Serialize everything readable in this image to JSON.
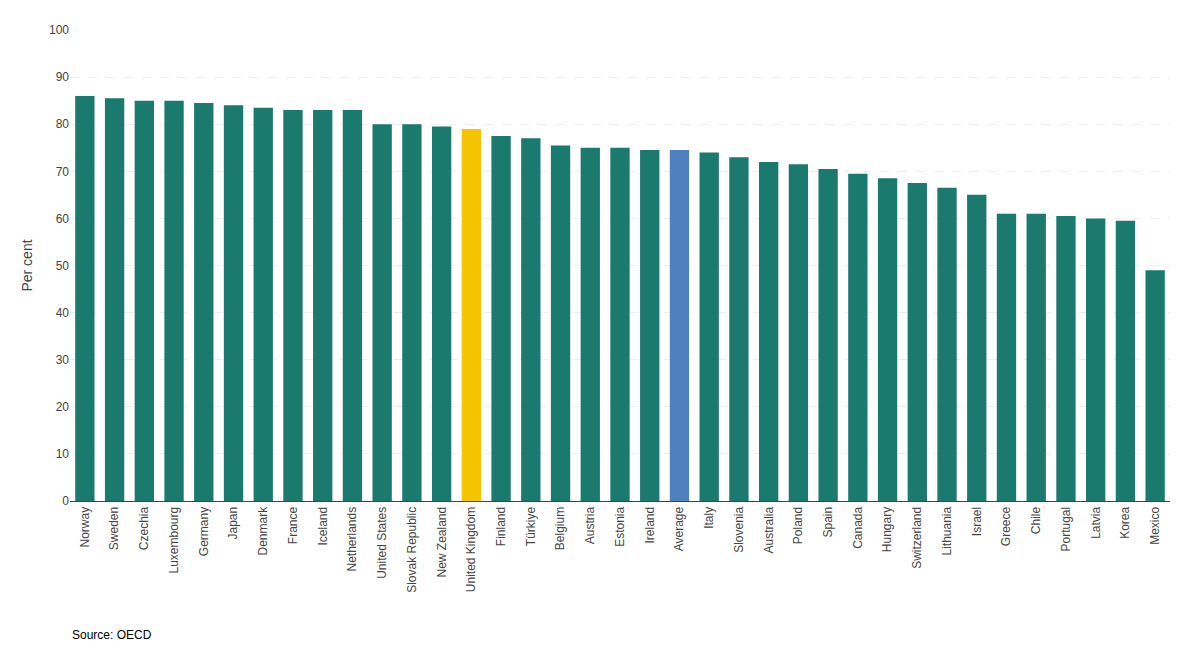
{
  "chart_data": {
    "type": "bar",
    "categories": [
      "Norway",
      "Sweden",
      "Czechia",
      "Luxembourg",
      "Germany",
      "Japan",
      "Denmark",
      "France",
      "Iceland",
      "Netherlands",
      "United States",
      "Slovak Republic",
      "New Zealand",
      "United Kingdom",
      "Finland",
      "Türkiye",
      "Belgium",
      "Austria",
      "Estonia",
      "Ireland",
      "Average",
      "Italy",
      "Slovenia",
      "Australia",
      "Poland",
      "Spain",
      "Canada",
      "Hungary",
      "Switzerland",
      "Lithuania",
      "Israel",
      "Greece",
      "Chile",
      "Portugal",
      "Latvia",
      "Korea",
      "Mexico"
    ],
    "values": [
      86,
      85.5,
      85,
      85,
      84.5,
      84,
      83.5,
      83,
      83,
      83,
      80,
      80,
      79.5,
      79,
      77.5,
      77,
      75.5,
      75,
      75,
      74.5,
      74.5,
      74,
      73,
      72,
      71.5,
      70.5,
      69.5,
      68.5,
      67.5,
      66.5,
      65,
      61,
      61,
      60.5,
      60,
      59.5,
      49
    ],
    "colors": [
      "#1a7a6e",
      "#1a7a6e",
      "#1a7a6e",
      "#1a7a6e",
      "#1a7a6e",
      "#1a7a6e",
      "#1a7a6e",
      "#1a7a6e",
      "#1a7a6e",
      "#1a7a6e",
      "#1a7a6e",
      "#1a7a6e",
      "#1a7a6e",
      "#f5c400",
      "#1a7a6e",
      "#1a7a6e",
      "#1a7a6e",
      "#1a7a6e",
      "#1a7a6e",
      "#1a7a6e",
      "#4e81bd",
      "#1a7a6e",
      "#1a7a6e",
      "#1a7a6e",
      "#1a7a6e",
      "#1a7a6e",
      "#1a7a6e",
      "#1a7a6e",
      "#1a7a6e",
      "#1a7a6e",
      "#1a7a6e",
      "#1a7a6e",
      "#1a7a6e",
      "#1a7a6e",
      "#1a7a6e",
      "#1a7a6e",
      "#1a7a6e"
    ],
    "ylabel": "Per cent",
    "ylim": [
      0,
      100
    ],
    "yticks": [
      0,
      10,
      20,
      30,
      40,
      50,
      60,
      70,
      80,
      90,
      100
    ],
    "grid": true,
    "annotations": [
      "Source: OECD"
    ]
  }
}
